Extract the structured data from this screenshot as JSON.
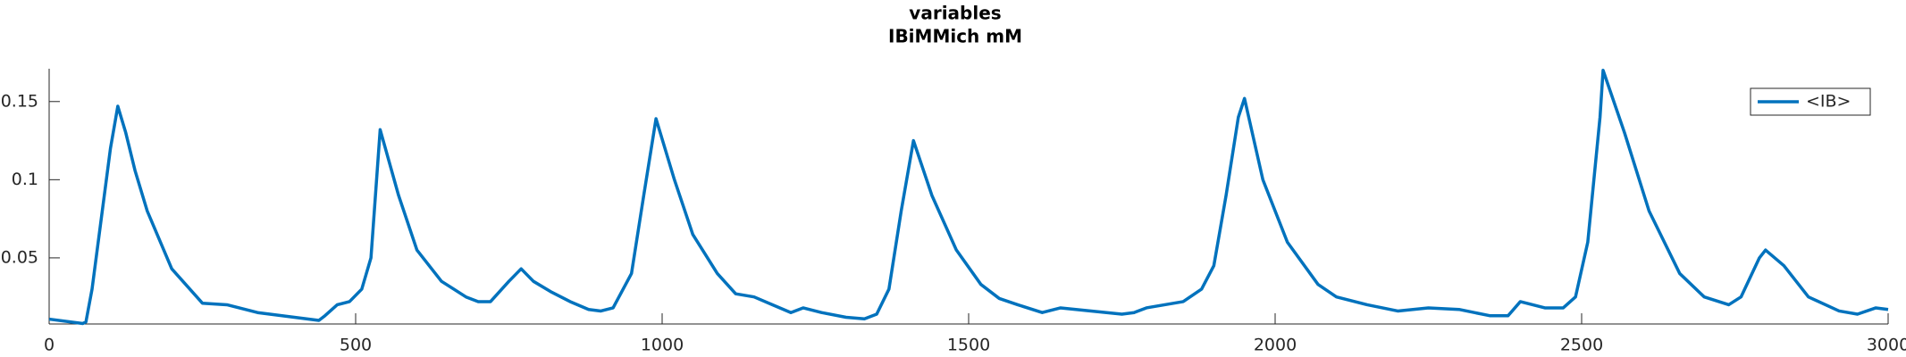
{
  "chart_data": {
    "type": "line",
    "title": "variables",
    "subtitle": "IBiMMich mM",
    "x": [
      0,
      55,
      60,
      70,
      85,
      100,
      112,
      125,
      140,
      160,
      200,
      250,
      290,
      340,
      420,
      440,
      450,
      470,
      490,
      510,
      525,
      540,
      570,
      600,
      640,
      680,
      700,
      720,
      750,
      770,
      790,
      820,
      850,
      880,
      900,
      920,
      950,
      970,
      990,
      1020,
      1050,
      1090,
      1120,
      1150,
      1180,
      1210,
      1230,
      1260,
      1300,
      1330,
      1350,
      1370,
      1390,
      1410,
      1440,
      1480,
      1520,
      1550,
      1580,
      1620,
      1650,
      1700,
      1750,
      1770,
      1790,
      1820,
      1850,
      1880,
      1900,
      1920,
      1940,
      1950,
      1980,
      2020,
      2070,
      2100,
      2150,
      2200,
      2250,
      2300,
      2350,
      2380,
      2400,
      2440,
      2470,
      2490,
      2510,
      2530,
      2535,
      2570,
      2610,
      2660,
      2700,
      2740,
      2760,
      2790,
      2800,
      2830,
      2870,
      2920,
      2950,
      2980,
      3000
    ],
    "series": [
      {
        "name": "<IB>",
        "color": "#0072bd",
        "values": [
          0.0108,
          0.008,
          0.009,
          0.03,
          0.075,
          0.12,
          0.147,
          0.13,
          0.106,
          0.08,
          0.043,
          0.021,
          0.02,
          0.015,
          0.011,
          0.01,
          0.013,
          0.02,
          0.022,
          0.03,
          0.05,
          0.132,
          0.09,
          0.055,
          0.035,
          0.025,
          0.022,
          0.022,
          0.035,
          0.043,
          0.035,
          0.028,
          0.022,
          0.017,
          0.016,
          0.018,
          0.04,
          0.09,
          0.139,
          0.1,
          0.065,
          0.04,
          0.027,
          0.025,
          0.02,
          0.015,
          0.018,
          0.015,
          0.012,
          0.011,
          0.014,
          0.03,
          0.08,
          0.125,
          0.09,
          0.055,
          0.033,
          0.024,
          0.02,
          0.015,
          0.018,
          0.016,
          0.014,
          0.015,
          0.018,
          0.02,
          0.022,
          0.03,
          0.045,
          0.09,
          0.14,
          0.152,
          0.1,
          0.06,
          0.033,
          0.025,
          0.02,
          0.016,
          0.018,
          0.017,
          0.013,
          0.013,
          0.022,
          0.018,
          0.018,
          0.025,
          0.06,
          0.14,
          0.17,
          0.13,
          0.08,
          0.04,
          0.025,
          0.02,
          0.025,
          0.05,
          0.055,
          0.045,
          0.025,
          0.016,
          0.014,
          0.018,
          0.017
        ]
      }
    ],
    "xlim": [
      0,
      3000
    ],
    "xticks": [
      0,
      500,
      1000,
      1500,
      2000,
      2500,
      3000
    ],
    "ylim": [
      0.0077,
      0.171
    ],
    "yticks": [
      0.05,
      0.1,
      0.15
    ],
    "grid": false,
    "legend": "top-right"
  }
}
